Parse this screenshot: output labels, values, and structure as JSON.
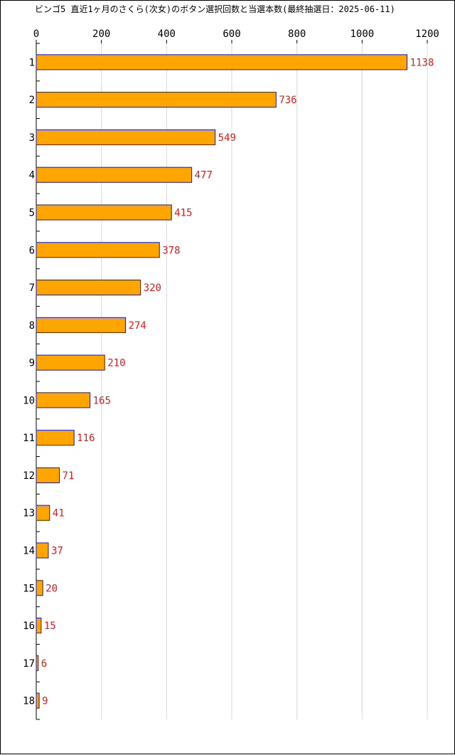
{
  "chart_data": {
    "type": "bar",
    "orientation": "horizontal",
    "title": "ビンゴ5 直近1ヶ月のさくら(次女)のボタン選択回数と当選本数(最終抽選日：2025-06-11)",
    "categories": [
      "1",
      "2",
      "3",
      "4",
      "5",
      "6",
      "7",
      "8",
      "9",
      "10",
      "11",
      "12",
      "13",
      "14",
      "15",
      "16",
      "17",
      "18"
    ],
    "values": [
      1138,
      736,
      549,
      477,
      415,
      378,
      320,
      274,
      210,
      165,
      116,
      71,
      41,
      37,
      20,
      15,
      6,
      9
    ],
    "xlim": [
      0,
      1200
    ],
    "xticks": [
      0,
      200,
      400,
      600,
      800,
      1000,
      1200
    ],
    "grid": true,
    "xaxis_position": "top",
    "data_labels": true,
    "colors": {
      "bar_fill": "#ffa500",
      "bar_stroke": "#1a1aa6",
      "value_label": "#e31b1b",
      "grid": "#d9d9d9",
      "axis": "#000000"
    }
  }
}
